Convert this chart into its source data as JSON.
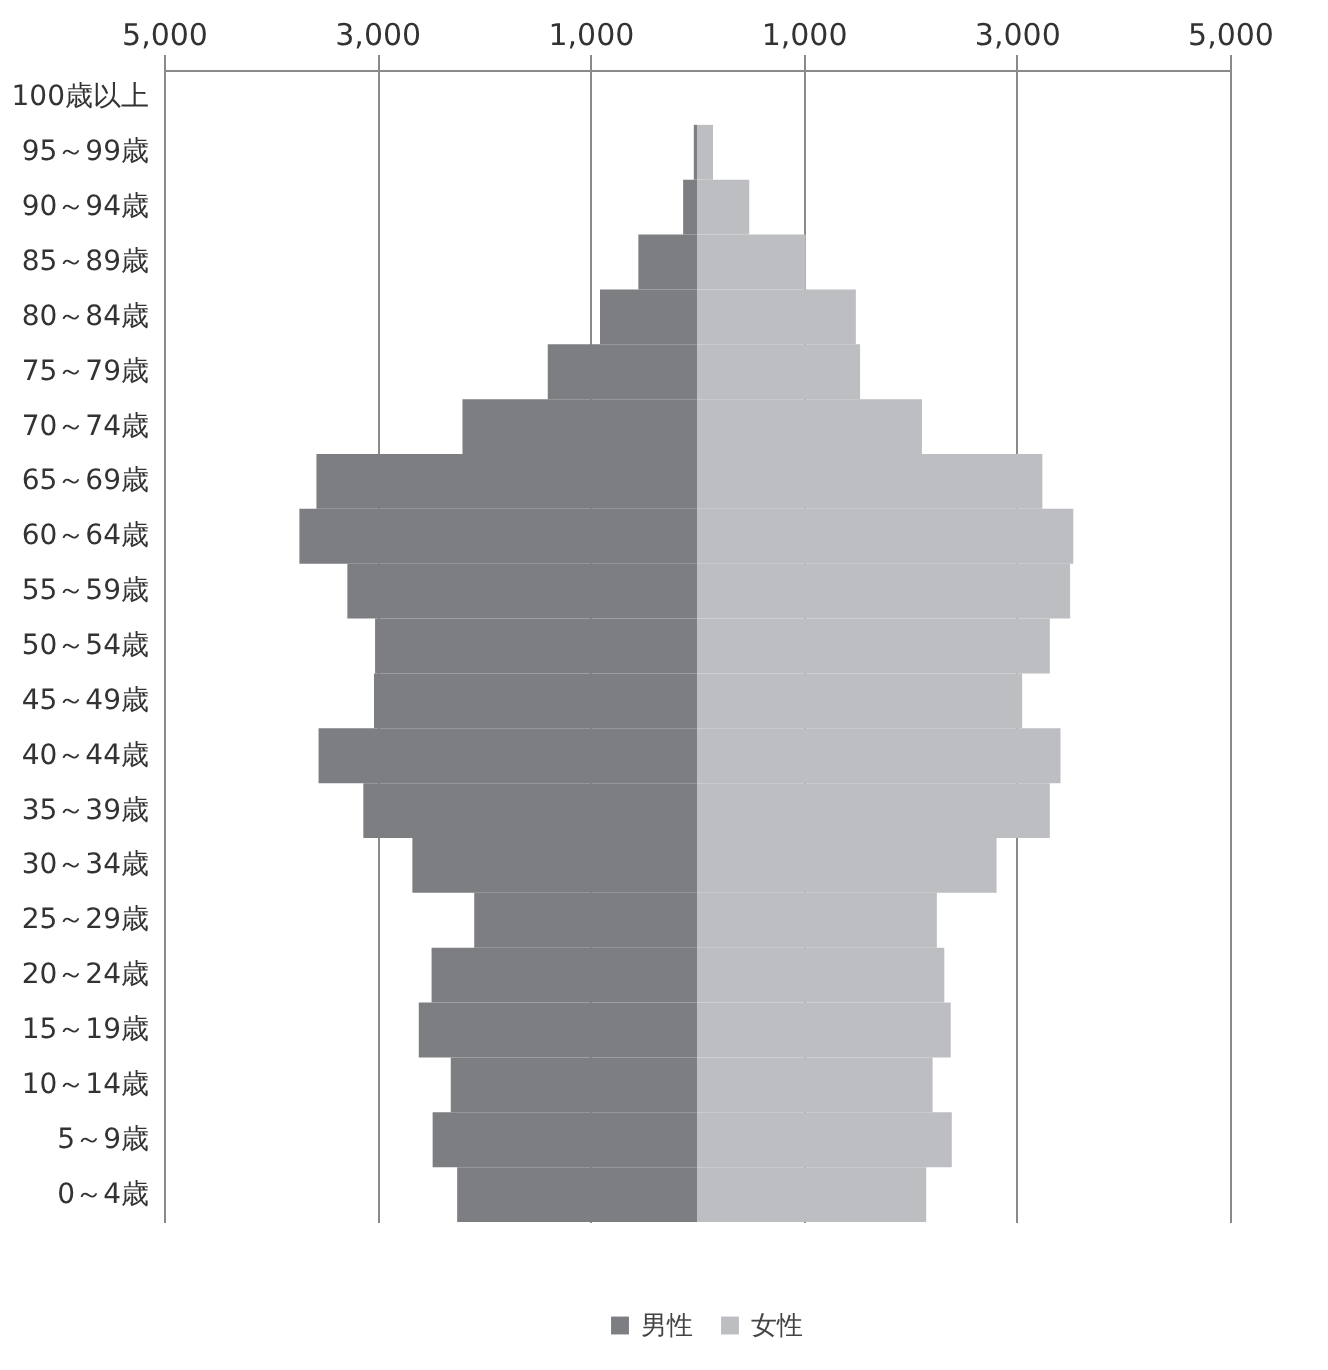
{
  "chart_data": {
    "type": "bar",
    "orientation": "horizontal",
    "categories": [
      "100歳以上",
      "95～99歳",
      "90～94歳",
      "85～89歳",
      "80～84歳",
      "75～79歳",
      "70～74歳",
      "65～69歳",
      "60～64歳",
      "55～59歳",
      "50～54歳",
      "45～49歳",
      "40～44歳",
      "35～39歳",
      "30～34歳",
      "25～29歳",
      "20～24歳",
      "15～19歳",
      "10～14歳",
      "5～9歳",
      "0～4歳"
    ],
    "series": [
      {
        "name": "男性",
        "color": "#7d7e82",
        "values": [
          0,
          -30,
          -130,
          -550,
          -910,
          -1400,
          -2200,
          -3570,
          -3730,
          -3280,
          -3020,
          -3030,
          -3550,
          -3130,
          -2670,
          -2090,
          -2490,
          -2610,
          -2310,
          -2480,
          -2250
        ]
      },
      {
        "name": "女性",
        "color": "#bdbec2",
        "values": [
          0,
          150,
          490,
          1020,
          1490,
          1530,
          2110,
          3240,
          3530,
          3500,
          3310,
          3050,
          3410,
          3310,
          2810,
          2250,
          2320,
          2380,
          2210,
          2390,
          2150
        ]
      }
    ],
    "xlim": [
      -5000,
      5000
    ],
    "xticks": [
      {
        "value": -5000,
        "label": "5,000"
      },
      {
        "value": -3000,
        "label": "3,000"
      },
      {
        "value": -1000,
        "label": "1,000"
      },
      {
        "value": 1000,
        "label": "1,000"
      },
      {
        "value": 3000,
        "label": "3,000"
      },
      {
        "value": 5000,
        "label": "5,000"
      }
    ],
    "grid": "x",
    "legend": "bottom",
    "stacked": true
  }
}
